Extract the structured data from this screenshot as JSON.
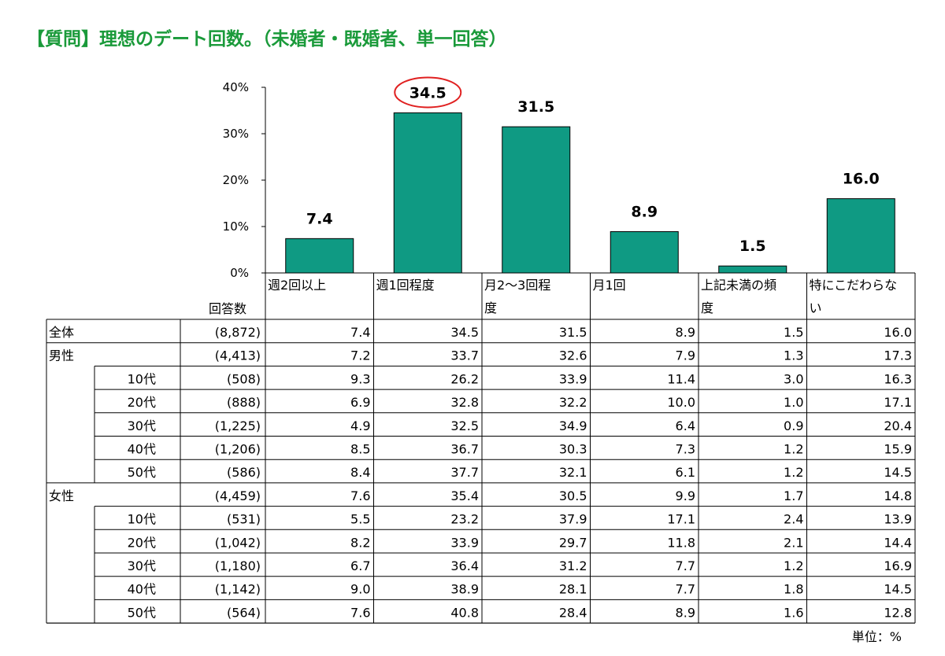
{
  "title": "【質問】理想のデート回数。（未婚者・既婚者、単一回答）",
  "unit_label": "単位：%",
  "count_header": "回答数",
  "chart_data": {
    "type": "bar",
    "categories": [
      "週2回以上",
      "週1回程度",
      "月2～3回程度",
      "月1回",
      "上記未満の頻度",
      "特にこだわらない"
    ],
    "category_lines": [
      [
        "週2回以上"
      ],
      [
        "週1回程度"
      ],
      [
        "月2～3回程",
        "度"
      ],
      [
        "月1回"
      ],
      [
        "上記未満の頻",
        "度"
      ],
      [
        "特にこだわらな",
        "い"
      ]
    ],
    "values": [
      7.4,
      34.5,
      31.5,
      8.9,
      1.5,
      16.0
    ],
    "value_labels": [
      "7.4",
      "34.5",
      "31.5",
      "8.9",
      "1.5",
      "16.0"
    ],
    "yticks": [
      "0%",
      "10%",
      "20%",
      "30%",
      "40%"
    ],
    "ylim": [
      0,
      40
    ],
    "bar_color": "#0f9a83",
    "highlight_index": 1,
    "highlight_color": "#e02020"
  },
  "table": {
    "rows": [
      {
        "group": "全体",
        "age": "",
        "count": "(8,872)",
        "values": [
          "7.4",
          "34.5",
          "31.5",
          "8.9",
          "1.5",
          "16.0"
        ]
      },
      {
        "group": "男性",
        "age": "",
        "count": "(4,413)",
        "values": [
          "7.2",
          "33.7",
          "32.6",
          "7.9",
          "1.3",
          "17.3"
        ]
      },
      {
        "group": "",
        "age": "10代",
        "count": "(508)",
        "values": [
          "9.3",
          "26.2",
          "33.9",
          "11.4",
          "3.0",
          "16.3"
        ]
      },
      {
        "group": "",
        "age": "20代",
        "count": "(888)",
        "values": [
          "6.9",
          "32.8",
          "32.2",
          "10.0",
          "1.0",
          "17.1"
        ]
      },
      {
        "group": "",
        "age": "30代",
        "count": "(1,225)",
        "values": [
          "4.9",
          "32.5",
          "34.9",
          "6.4",
          "0.9",
          "20.4"
        ]
      },
      {
        "group": "",
        "age": "40代",
        "count": "(1,206)",
        "values": [
          "8.5",
          "36.7",
          "30.3",
          "7.3",
          "1.2",
          "15.9"
        ]
      },
      {
        "group": "",
        "age": "50代",
        "count": "(586)",
        "values": [
          "8.4",
          "37.7",
          "32.1",
          "6.1",
          "1.2",
          "14.5"
        ]
      },
      {
        "group": "女性",
        "age": "",
        "count": "(4,459)",
        "values": [
          "7.6",
          "35.4",
          "30.5",
          "9.9",
          "1.7",
          "14.8"
        ]
      },
      {
        "group": "",
        "age": "10代",
        "count": "(531)",
        "values": [
          "5.5",
          "23.2",
          "37.9",
          "17.1",
          "2.4",
          "13.9"
        ]
      },
      {
        "group": "",
        "age": "20代",
        "count": "(1,042)",
        "values": [
          "8.2",
          "33.9",
          "29.7",
          "11.8",
          "2.1",
          "14.4"
        ]
      },
      {
        "group": "",
        "age": "30代",
        "count": "(1,180)",
        "values": [
          "6.7",
          "36.4",
          "31.2",
          "7.7",
          "1.2",
          "16.9"
        ]
      },
      {
        "group": "",
        "age": "40代",
        "count": "(1,142)",
        "values": [
          "9.0",
          "38.9",
          "28.1",
          "7.7",
          "1.8",
          "14.5"
        ]
      },
      {
        "group": "",
        "age": "50代",
        "count": "(564)",
        "values": [
          "7.6",
          "40.8",
          "28.4",
          "8.9",
          "1.6",
          "12.8"
        ]
      }
    ]
  }
}
